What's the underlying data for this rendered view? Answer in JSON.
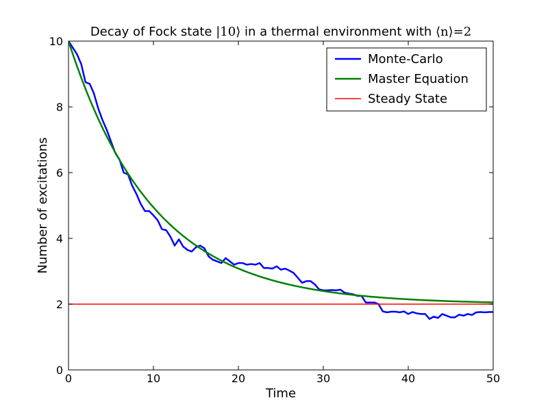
{
  "chart_data": {
    "type": "line",
    "title_prefix": "Decay of Fock state ",
    "title_ket": "|10⟩",
    "title_middle": " in a thermal environment with ",
    "title_avg": "⟨n⟩=2",
    "xlabel": "Time",
    "ylabel": "Number of excitations",
    "xlim": [
      0,
      50
    ],
    "ylim": [
      0,
      10
    ],
    "xticks": [
      0,
      10,
      20,
      30,
      40,
      50
    ],
    "yticks": [
      0,
      2,
      4,
      6,
      8,
      10
    ],
    "legend_position": "top-right",
    "grid": false,
    "series": [
      {
        "name": "Monte-Carlo",
        "color": "#0000ff",
        "x": [
          0,
          0.5,
          1,
          1.5,
          2,
          2.5,
          3,
          3.5,
          4,
          4.5,
          5,
          5.5,
          6,
          6.5,
          7,
          7.5,
          8,
          8.5,
          9,
          9.5,
          10,
          10.5,
          11,
          11.5,
          12,
          12.5,
          13,
          13.5,
          14,
          14.5,
          15,
          15.5,
          16,
          16.5,
          17,
          17.5,
          18,
          18.5,
          19,
          19.5,
          20,
          20.5,
          21,
          21.5,
          22,
          22.5,
          23,
          23.5,
          24,
          24.5,
          25,
          25.5,
          26,
          26.5,
          27,
          27.5,
          28,
          28.5,
          29,
          29.5,
          30,
          30.5,
          31,
          31.5,
          32,
          32.5,
          33,
          33.5,
          34,
          34.5,
          35,
          35.5,
          36,
          36.5,
          37,
          37.5,
          38,
          38.5,
          39,
          39.5,
          40,
          40.5,
          41,
          41.5,
          42,
          42.5,
          43,
          43.5,
          44,
          44.5,
          45,
          45.5,
          46,
          46.5,
          47,
          47.5,
          48,
          48.5,
          49,
          49.5,
          50
        ],
        "values": [
          10,
          9.8,
          9.6,
          9.3,
          8.75,
          8.7,
          8.4,
          7.95,
          7.6,
          7.3,
          6.95,
          6.6,
          6.4,
          6.0,
          5.95,
          5.6,
          5.35,
          5.05,
          4.83,
          4.83,
          4.7,
          4.55,
          4.28,
          4.25,
          4.05,
          3.78,
          3.97,
          3.75,
          3.65,
          3.6,
          3.73,
          3.78,
          3.7,
          3.45,
          3.35,
          3.3,
          3.25,
          3.4,
          3.3,
          3.2,
          3.25,
          3.25,
          3.2,
          3.22,
          3.2,
          3.25,
          3.1,
          3.1,
          3.08,
          3.15,
          3.05,
          3.08,
          3.02,
          2.95,
          2.8,
          2.65,
          2.7,
          2.7,
          2.6,
          2.45,
          2.42,
          2.42,
          2.43,
          2.42,
          2.44,
          2.35,
          2.32,
          2.3,
          2.25,
          2.25,
          2.05,
          2.05,
          2.05,
          2.0,
          1.78,
          1.75,
          1.77,
          1.77,
          1.75,
          1.78,
          1.7,
          1.76,
          1.72,
          1.7,
          1.7,
          1.55,
          1.62,
          1.58,
          1.7,
          1.65,
          1.6,
          1.6,
          1.68,
          1.65,
          1.7,
          1.67,
          1.75,
          1.76,
          1.75,
          1.76,
          1.76
        ]
      },
      {
        "name": "Master Equation",
        "color": "#008000",
        "model": "exponential",
        "initial": 10,
        "steady": 2,
        "rate": 0.1
      },
      {
        "name": "Steady State",
        "color": "#ff0000",
        "constant": 2
      }
    ]
  }
}
